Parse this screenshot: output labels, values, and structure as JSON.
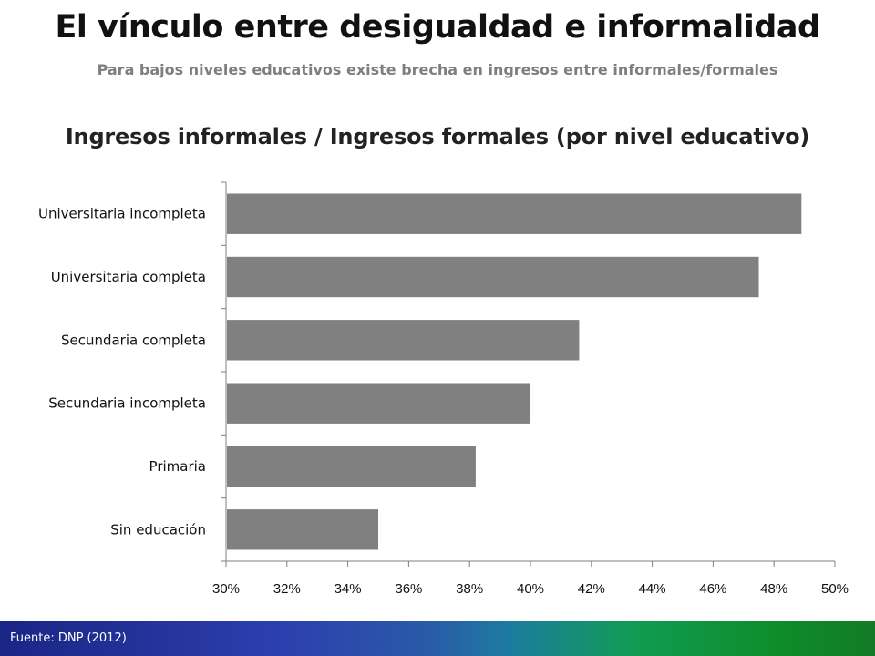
{
  "header": {
    "title": "El vínculo entre desigualdad e informalidad",
    "subtitle": "Para bajos niveles educativos existe brecha en ingresos entre informales/formales"
  },
  "footer": {
    "source": "Fuente: DNP (2012)"
  },
  "colors": {
    "bar": "#808080",
    "axis": "#7f7f7f"
  },
  "chart_data": {
    "type": "bar",
    "orientation": "horizontal",
    "title": "Ingresos informales / Ingresos formales (por nivel educativo)",
    "categories": [
      "Universitaria incompleta",
      "Universitaria completa",
      "Secundaria completa",
      "Secundaria incompleta",
      "Primaria",
      "Sin educación"
    ],
    "values": [
      48.9,
      47.5,
      41.6,
      40.0,
      38.2,
      35.0
    ],
    "xlim": [
      30,
      50
    ],
    "xticks": [
      "30%",
      "32%",
      "34%",
      "36%",
      "38%",
      "40%",
      "42%",
      "44%",
      "46%",
      "48%",
      "50%"
    ],
    "grid": false,
    "legend": "none"
  }
}
